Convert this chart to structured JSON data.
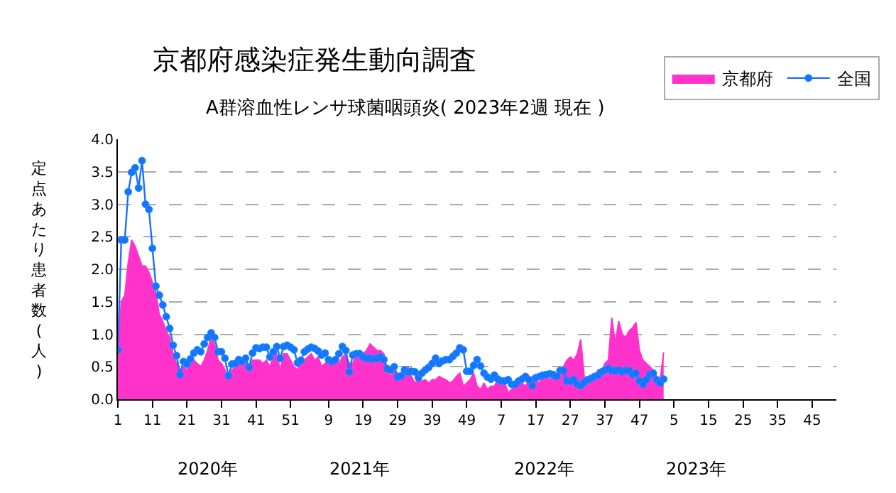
{
  "chart_data": {
    "type": "area",
    "title": "京都府感染症発生動向調査",
    "subtitle": "A群溶血性レンサ球菌咽頭炎( 2023年2週 現在 )",
    "ylabel": "定点あたり患者数(人)",
    "categories": [
      "1",
      null,
      null,
      null,
      null,
      null,
      null,
      null,
      null,
      null,
      "11",
      null,
      null,
      null,
      null,
      null,
      null,
      null,
      null,
      null,
      "21",
      null,
      null,
      null,
      null,
      null,
      null,
      null,
      null,
      null,
      "31",
      null,
      null,
      null,
      null,
      null,
      null,
      null,
      null,
      null,
      "41",
      null,
      null,
      null,
      null,
      null,
      null,
      null,
      null,
      null,
      "51",
      null,
      null,
      null,
      null,
      null,
      null,
      null,
      null,
      null,
      null,
      "9",
      null,
      null,
      null,
      null,
      null,
      null,
      null,
      null,
      null,
      "19",
      null,
      null,
      null,
      null,
      null,
      null,
      null,
      null,
      null,
      "29",
      null,
      null,
      null,
      null,
      null,
      null,
      null,
      null,
      null,
      "39",
      null,
      null,
      null,
      null,
      null,
      null,
      null,
      null,
      null,
      "49",
      null,
      null,
      null,
      null,
      null,
      null,
      null,
      null,
      null,
      "7",
      null,
      null,
      null,
      null,
      null,
      null,
      null,
      null,
      null,
      "17",
      null,
      null,
      null,
      null,
      null,
      null,
      null,
      null,
      null,
      "27",
      null,
      null,
      null,
      null,
      null,
      null,
      null,
      null,
      null,
      "37",
      null,
      null,
      null,
      null,
      null,
      null,
      null,
      null,
      null,
      "47",
      null,
      null,
      null,
      null,
      null,
      null,
      null,
      null,
      null,
      "5",
      null,
      null,
      null,
      null,
      null,
      null,
      null,
      null,
      null,
      "15",
      null,
      null,
      null,
      null,
      null,
      null,
      null,
      null,
      null,
      "25",
      null,
      null,
      null,
      null,
      null,
      null,
      null,
      null,
      null,
      "35",
      null,
      null,
      null,
      null,
      null,
      null,
      null,
      null,
      null,
      "45",
      null,
      null,
      null,
      null,
      null,
      null,
      null
    ],
    "series": [
      {
        "name": "京都府",
        "color": "#ff33cc",
        "values": [
          0.8,
          1.5,
          1.6,
          2.1,
          2.45,
          2.35,
          2.2,
          2.05,
          2.05,
          1.95,
          1.8,
          1.65,
          1.3,
          1.2,
          1.05,
          0.95,
          0.7,
          0.55,
          0.45,
          0.5,
          0.45,
          0.55,
          0.6,
          0.55,
          0.5,
          0.6,
          0.75,
          0.95,
          0.85,
          0.6,
          0.55,
          0.45,
          0.28,
          0.45,
          0.5,
          0.6,
          0.6,
          0.6,
          0.45,
          0.6,
          0.6,
          0.6,
          0.55,
          0.6,
          0.5,
          0.65,
          0.7,
          0.45,
          0.7,
          0.7,
          0.6,
          0.5,
          0.45,
          0.6,
          0.6,
          0.65,
          0.7,
          0.6,
          0.65,
          0.5,
          0.55,
          0.6,
          0.55,
          0.6,
          0.55,
          0.65,
          0.7,
          0.55,
          0.55,
          0.7,
          0.75,
          0.7,
          0.75,
          0.85,
          0.8,
          0.75,
          0.75,
          0.7,
          0.45,
          0.35,
          0.45,
          0.4,
          0.35,
          0.45,
          0.5,
          0.35,
          0.25,
          0.3,
          0.28,
          0.3,
          0.25,
          0.3,
          0.3,
          0.35,
          0.32,
          0.3,
          0.25,
          0.28,
          0.35,
          0.4,
          0.2,
          0.25,
          0.3,
          0.4,
          0.2,
          0.15,
          0.25,
          0.15,
          0.2,
          0.2,
          0.3,
          0.2,
          0.25,
          0.1,
          0.15,
          0.2,
          0.3,
          0.25,
          0.2,
          0.3,
          0.35,
          0.3,
          0.25,
          0.35,
          0.4,
          0.3,
          0.35,
          0.3,
          0.45,
          0.5,
          0.6,
          0.65,
          0.6,
          0.7,
          0.92,
          0.35,
          0.2,
          0.3,
          0.35,
          0.45,
          0.4,
          0.55,
          0.6,
          1.25,
          0.85,
          1.2,
          1.0,
          0.95,
          1.05,
          1.1,
          1.18,
          0.75,
          0.6,
          0.55,
          0.5,
          0.45,
          0.35,
          0.3,
          0.72,
          null,
          null,
          null,
          null,
          null,
          null,
          null,
          null,
          null,
          null,
          null,
          null,
          null,
          null,
          null,
          null,
          null,
          null,
          null,
          null,
          null,
          null,
          null,
          null,
          null,
          null,
          null,
          null,
          null,
          null,
          null,
          null,
          null,
          null,
          null,
          null,
          null,
          null,
          null,
          null,
          null,
          null,
          null,
          null,
          null,
          null,
          null,
          null,
          null,
          null
        ]
      },
      {
        "name": "全国",
        "type": "line",
        "color": "#1e6fff",
        "marker": "circle",
        "values": [
          0.76,
          2.45,
          2.45,
          3.19,
          3.49,
          3.56,
          3.25,
          3.67,
          3.0,
          2.92,
          2.32,
          1.74,
          1.6,
          1.45,
          1.27,
          1.09,
          0.83,
          0.67,
          0.38,
          0.58,
          0.54,
          0.62,
          0.71,
          0.76,
          0.73,
          0.85,
          0.95,
          1.02,
          0.95,
          0.73,
          0.73,
          0.63,
          0.36,
          0.54,
          0.55,
          0.61,
          0.58,
          0.63,
          0.49,
          0.71,
          0.79,
          0.78,
          0.8,
          0.8,
          0.65,
          0.73,
          0.81,
          0.63,
          0.81,
          0.83,
          0.8,
          0.76,
          0.56,
          0.6,
          0.73,
          0.77,
          0.8,
          0.78,
          0.74,
          0.68,
          0.71,
          0.61,
          0.58,
          0.61,
          0.7,
          0.81,
          0.75,
          0.42,
          0.68,
          0.7,
          0.7,
          0.65,
          0.63,
          0.63,
          0.62,
          0.63,
          0.65,
          0.61,
          0.47,
          0.45,
          0.5,
          0.34,
          0.36,
          0.45,
          0.42,
          0.43,
          0.42,
          0.33,
          0.4,
          0.45,
          0.49,
          0.55,
          0.63,
          0.55,
          0.59,
          0.61,
          0.61,
          0.66,
          0.71,
          0.79,
          0.76,
          0.43,
          0.43,
          0.52,
          0.61,
          0.51,
          0.4,
          0.34,
          0.31,
          0.37,
          0.31,
          0.28,
          0.28,
          0.3,
          0.23,
          0.23,
          0.28,
          0.31,
          0.35,
          0.3,
          0.21,
          0.33,
          0.35,
          0.37,
          0.38,
          0.39,
          0.38,
          0.35,
          0.44,
          0.44,
          0.28,
          0.28,
          0.3,
          0.23,
          0.21,
          0.26,
          0.3,
          0.32,
          0.35,
          0.37,
          0.42,
          0.45,
          0.47,
          0.44,
          0.44,
          0.45,
          0.42,
          0.44,
          0.44,
          0.38,
          0.4,
          0.28,
          0.23,
          0.3,
          0.38,
          0.4,
          0.3,
          0.25,
          0.31,
          null,
          null,
          null,
          null,
          null,
          null,
          null,
          null,
          null,
          null,
          null,
          null,
          null,
          null,
          null,
          null,
          null,
          null,
          null,
          null,
          null,
          null,
          null,
          null,
          null,
          null,
          null,
          null,
          null,
          null,
          null,
          null,
          null,
          null,
          null,
          null,
          null,
          null,
          null,
          null,
          null,
          null,
          null,
          null,
          null,
          null,
          null,
          null,
          null,
          null
        ]
      }
    ],
    "ylim": [
      0,
      4
    ],
    "yticks": [
      {
        "value": 0,
        "label": "0.0"
      },
      {
        "value": 0.5,
        "label": "0.5"
      },
      {
        "value": 1,
        "label": "1.0"
      },
      {
        "value": 1.5,
        "label": "1.5"
      },
      {
        "value": 2,
        "label": "2.0"
      },
      {
        "value": 2.5,
        "label": "2.5"
      },
      {
        "value": 3,
        "label": "3.0"
      },
      {
        "value": 3.5,
        "label": "3.5"
      },
      {
        "value": 4,
        "label": "4.0"
      }
    ],
    "grid": "y",
    "legend": "top right",
    "annotations": [
      "2020年",
      "2021年",
      "2022年",
      "2023年"
    ]
  }
}
